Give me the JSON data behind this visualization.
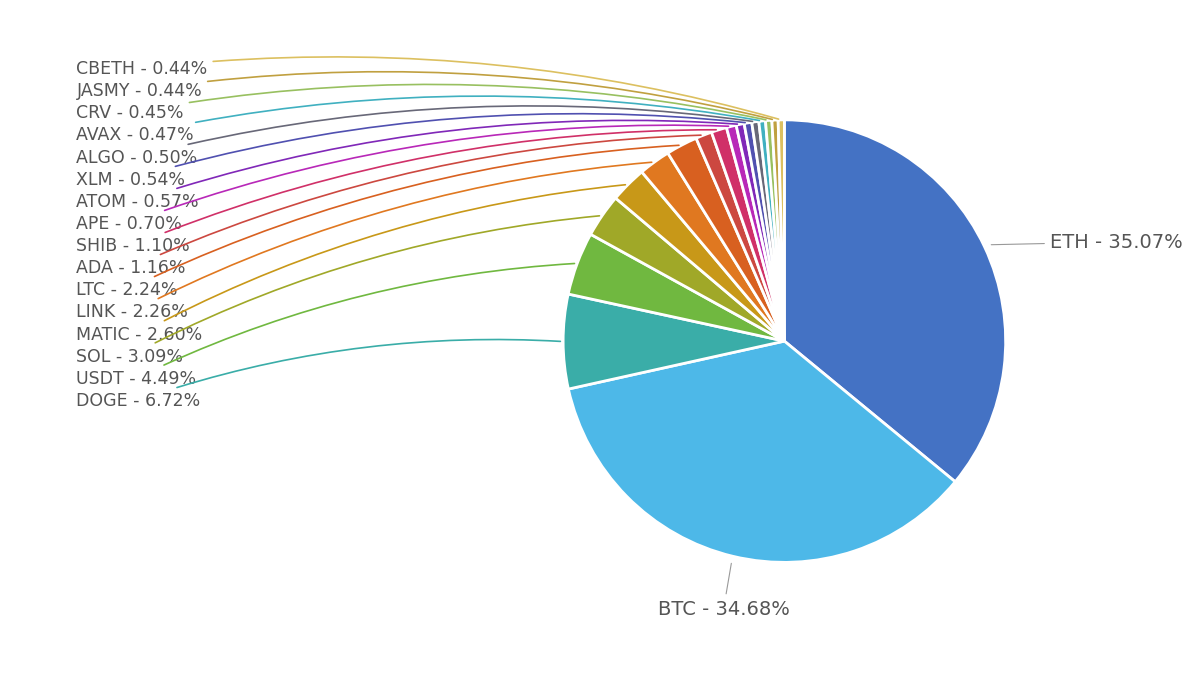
{
  "labels": [
    "ETH",
    "BTC",
    "DOGE",
    "USDT",
    "SOL",
    "MATIC",
    "LINK",
    "LTC",
    "ADA",
    "SHIB",
    "APE",
    "ATOM",
    "XLM",
    "ALGO",
    "AVAX",
    "CRV",
    "JASMY",
    "CBETH"
  ],
  "display_labels": [
    "ETH - 35.07%",
    "BTC - 34.68%",
    "DOGE - 6.72%",
    "USDT - 4.49%",
    "SOL - 3.09%",
    "MATIC - 2.60%",
    "LINK - 2.26%",
    "LTC - 2.24%",
    "ADA - 1.16%",
    "SHIB - 1.10%",
    "APE - 0.70%",
    "ATOM - 0.57%",
    "XLM - 0.54%",
    "ALGO - 0.50%",
    "AVAX - 0.47%",
    "CRV - 0.45%",
    "JASMY - 0.44%",
    "CBETH - 0.44%"
  ],
  "values": [
    35.07,
    34.68,
    6.72,
    4.49,
    3.09,
    2.6,
    2.26,
    2.24,
    1.16,
    1.1,
    0.7,
    0.57,
    0.54,
    0.5,
    0.47,
    0.45,
    0.44,
    0.44
  ],
  "colors": [
    "#4472c4",
    "#4db8e8",
    "#3aada8",
    "#70b840",
    "#a0a828",
    "#c89818",
    "#e07820",
    "#d86020",
    "#cc4840",
    "#d03068",
    "#b828b8",
    "#8028b8",
    "#5050b0",
    "#686878",
    "#40b0c0",
    "#98c060",
    "#c0a040",
    "#dcc060"
  ],
  "background_color": "#ffffff",
  "label_color": "#555555",
  "label_fontsize": 14,
  "wedge_edge_color": "#ffffff",
  "wedge_linewidth": 2.0
}
